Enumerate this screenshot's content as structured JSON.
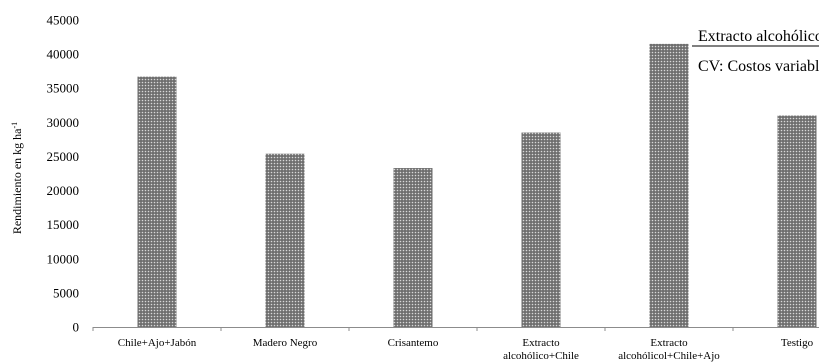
{
  "chart_data": {
    "type": "bar",
    "categories": [
      [
        "Chile+Ajo+Jabón"
      ],
      [
        "Madero Negro"
      ],
      [
        "Crisantemo"
      ],
      [
        "Extracto",
        "alcohólico+Chile"
      ],
      [
        "Extracto",
        "alcohólicol+Chile+Ajo"
      ],
      [
        "Testigo"
      ]
    ],
    "values": [
      36700,
      25400,
      23300,
      28500,
      41500,
      31000
    ],
    "ylabel_main": "Rendimiento en kg ha",
    "ylabel_sup": "-1",
    "ylim": [
      0,
      45000
    ],
    "yticks": [
      0,
      5000,
      10000,
      15000,
      20000,
      25000,
      30000,
      35000,
      40000,
      45000
    ],
    "bar_pattern": "dotted-gray",
    "grid": false
  },
  "notes": {
    "line1": "Extracto alcohólico",
    "line2": "CV: Costos variables"
  }
}
